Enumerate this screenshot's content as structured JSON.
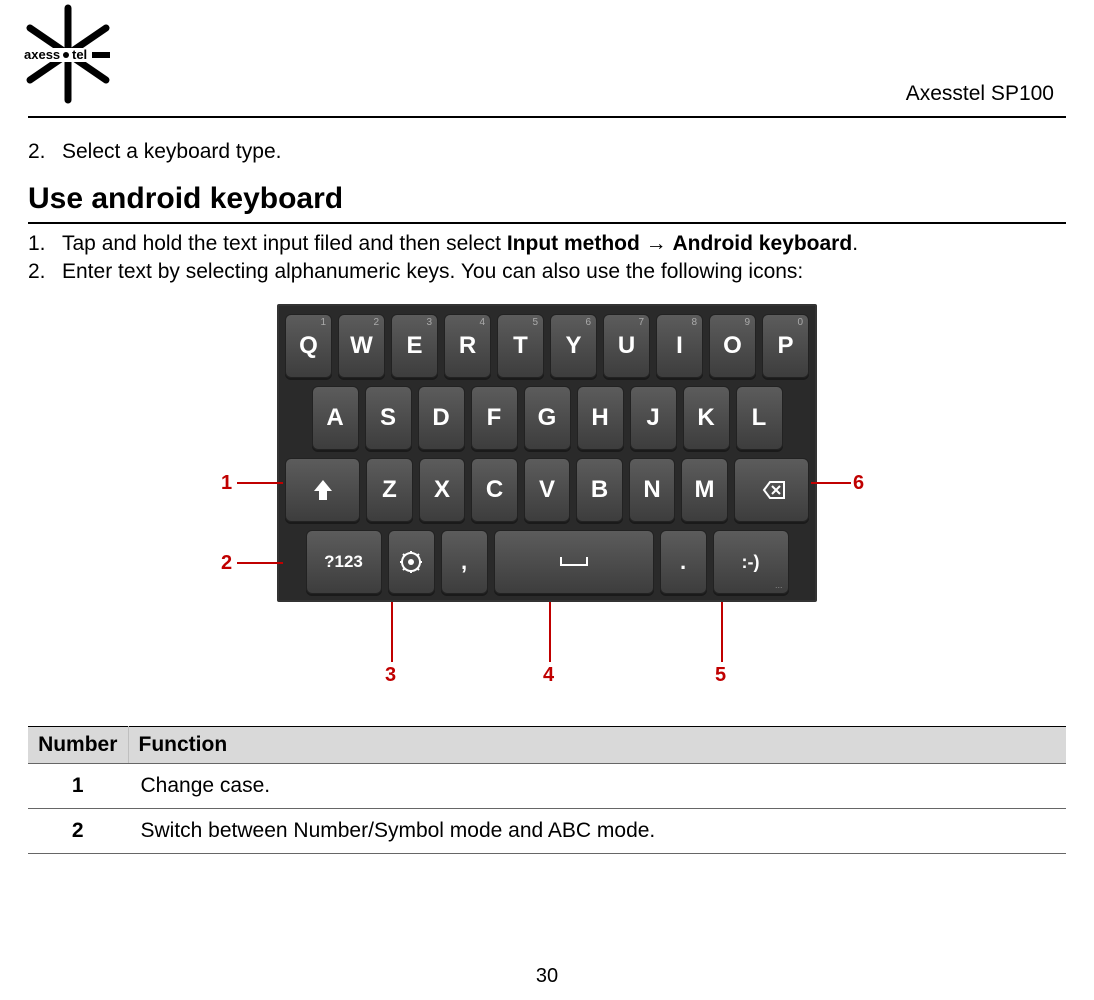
{
  "header": {
    "brand_left": "axess",
    "brand_right": "tel",
    "product": "Axesstel SP100"
  },
  "intro_step": {
    "num": "2.",
    "text": "Select a keyboard type."
  },
  "section_heading": "Use android keyboard",
  "steps": [
    {
      "num": "1.",
      "pre": "Tap and hold the text input filed and then select ",
      "b1": "Input method",
      "arrow": " → ",
      "b2": "Android keyboard",
      "post": "."
    },
    {
      "num": "2.",
      "text": "Enter text by selecting alphanumeric keys. You can also use the following icons:"
    }
  ],
  "keyboard": {
    "bg": "#2a2a2a",
    "key_bg_top": "#5c5c5c",
    "key_bg_bot": "#3d3d3d",
    "row1": [
      {
        "main": "Q",
        "sup": "1"
      },
      {
        "main": "W",
        "sup": "2"
      },
      {
        "main": "E",
        "sup": "3"
      },
      {
        "main": "R",
        "sup": "4"
      },
      {
        "main": "T",
        "sup": "5"
      },
      {
        "main": "Y",
        "sup": "6"
      },
      {
        "main": "U",
        "sup": "7"
      },
      {
        "main": "I",
        "sup": "8"
      },
      {
        "main": "O",
        "sup": "9"
      },
      {
        "main": "P",
        "sup": "0"
      }
    ],
    "row2": [
      {
        "main": "A"
      },
      {
        "main": "S"
      },
      {
        "main": "D"
      },
      {
        "main": "F"
      },
      {
        "main": "G"
      },
      {
        "main": "H"
      },
      {
        "main": "J"
      },
      {
        "main": "K"
      },
      {
        "main": "L"
      }
    ],
    "row3": {
      "shift": "shift",
      "letters": [
        {
          "main": "Z"
        },
        {
          "main": "X"
        },
        {
          "main": "C"
        },
        {
          "main": "V"
        },
        {
          "main": "B"
        },
        {
          "main": "N"
        },
        {
          "main": "M"
        }
      ],
      "backspace": "backspace"
    },
    "row4": {
      "mode": "?123",
      "settings": "settings",
      "comma": ",",
      "space": " ",
      "period": ".",
      "smiley": ":-)",
      "ellipsis": "..."
    }
  },
  "callouts": {
    "c1": "1",
    "c2": "2",
    "c3": "3",
    "c4": "4",
    "c5": "5",
    "c6": "6",
    "color": "#c00000"
  },
  "table": {
    "head_num": "Number",
    "head_func": "Function",
    "rows": [
      {
        "n": "1",
        "f": "Change case."
      },
      {
        "n": "2",
        "f": "Switch between Number/Symbol mode and ABC mode."
      }
    ]
  },
  "page_number": "30"
}
